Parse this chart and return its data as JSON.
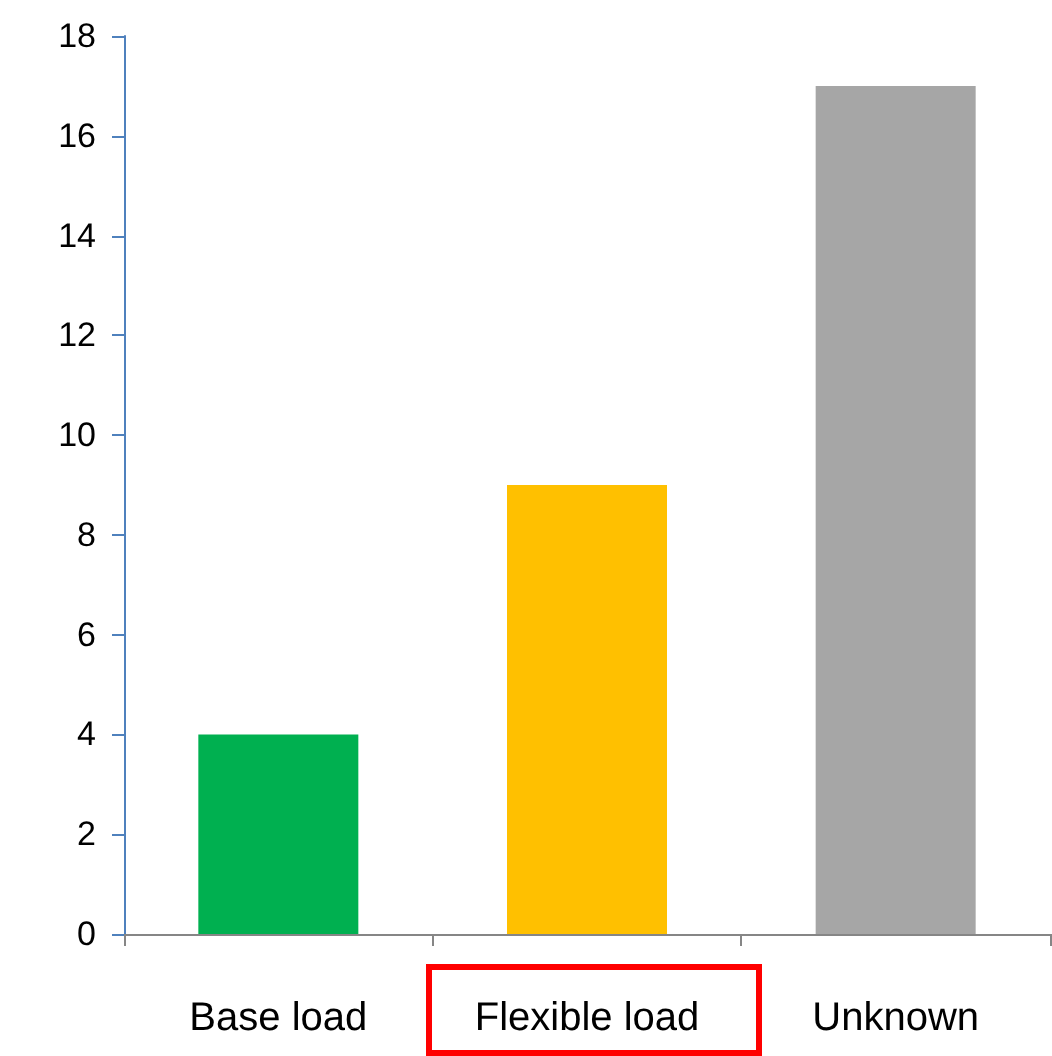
{
  "chart_data": {
    "type": "bar",
    "categories": [
      "Base load",
      "Flexible load",
      "Unknown"
    ],
    "values": [
      4,
      9,
      17
    ],
    "colors": [
      "#00b050",
      "#ffc000",
      "#a6a6a6"
    ],
    "ylim": [
      0,
      18
    ],
    "yticks": [
      0,
      2,
      4,
      6,
      8,
      10,
      12,
      14,
      16,
      18
    ]
  }
}
